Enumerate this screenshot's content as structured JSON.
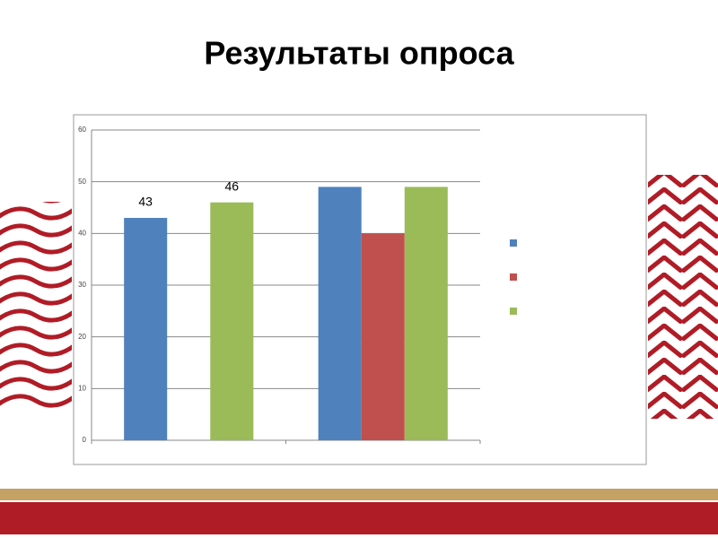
{
  "chart_data": {
    "type": "bar",
    "title": "Результаты опроса",
    "categories": [
      null,
      null
    ],
    "series": [
      {
        "color": "#4f81bd",
        "values": [
          43,
          49
        ],
        "value_labels": [
          "43",
          null
        ]
      },
      {
        "color": "#c0504d",
        "values": [
          null,
          40
        ]
      },
      {
        "color": "#9bbb59",
        "values": [
          46,
          49
        ],
        "value_labels": [
          "46",
          null
        ]
      }
    ],
    "ylim": [
      0,
      60
    ],
    "yticks": [
      0,
      10,
      20,
      30,
      40,
      50,
      60
    ],
    "grid": true,
    "legend": "right"
  }
}
